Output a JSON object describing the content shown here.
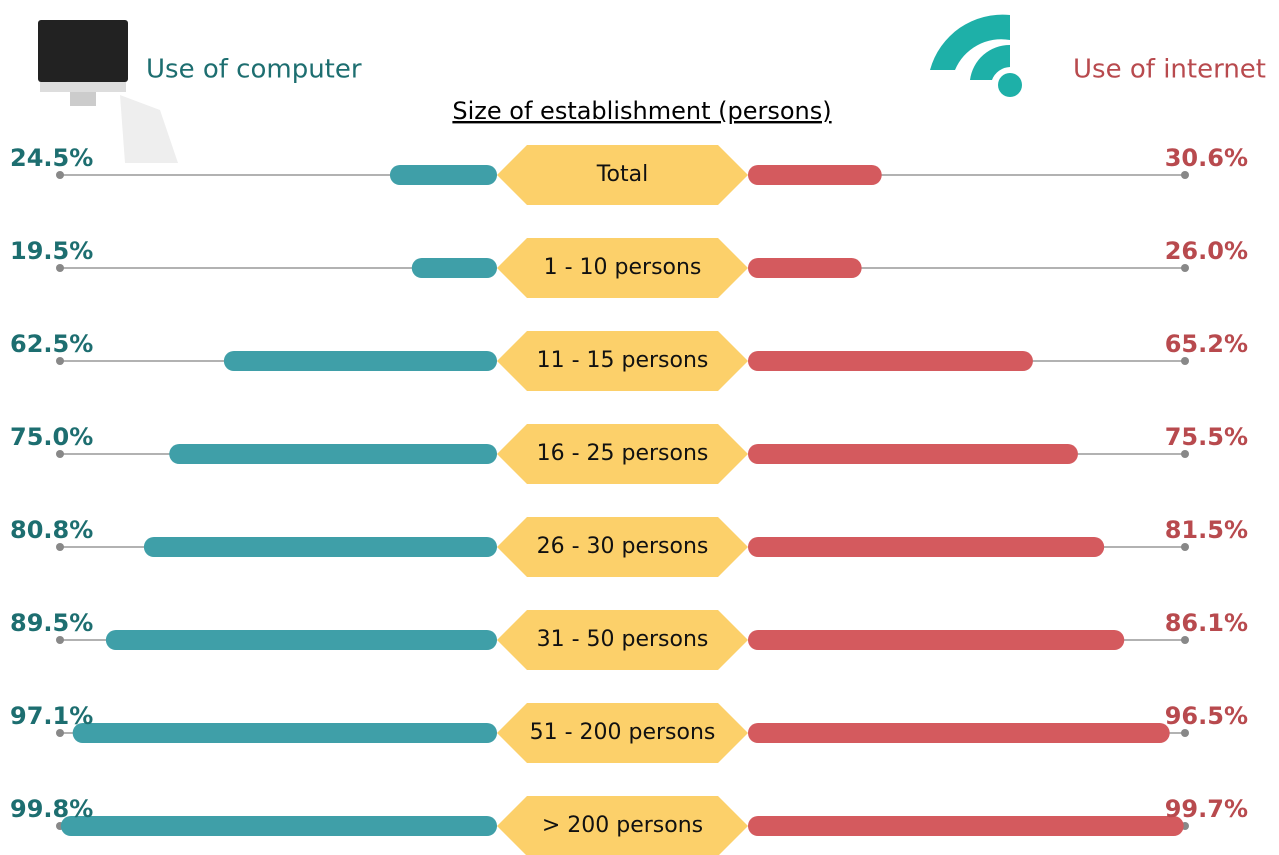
{
  "chart_data": {
    "type": "butterfly",
    "category_label": "Size of establishment (persons)",
    "categories": [
      "Total",
      "1 - 10 persons",
      "11 - 15 persons",
      "16 - 25 persons",
      "26 - 30 persons",
      "31 - 50 persons",
      "51 - 200 persons",
      "> 200 persons"
    ],
    "series": [
      {
        "name": "Use of computer",
        "color": "#3f9fa8",
        "label_color": "#1d6e70",
        "values": [
          24.5,
          19.5,
          62.5,
          75.0,
          80.8,
          89.5,
          97.1,
          99.8
        ],
        "value_labels": [
          "24.5%",
          "19.5%",
          "62.5%",
          "75.0%",
          "80.8%",
          "89.5%",
          "97.1%",
          "99.8%"
        ]
      },
      {
        "name": "Use of internet",
        "color": "#d45a5e",
        "label_color": "#b84a4e",
        "values": [
          30.6,
          26.0,
          65.2,
          75.5,
          81.5,
          86.1,
          96.5,
          99.7
        ],
        "value_labels": [
          "30.6%",
          "26.0%",
          "65.2%",
          "75.5%",
          "81.5%",
          "86.1%",
          "96.5%",
          "99.7%"
        ]
      }
    ],
    "xlim": [
      0,
      100
    ]
  }
}
